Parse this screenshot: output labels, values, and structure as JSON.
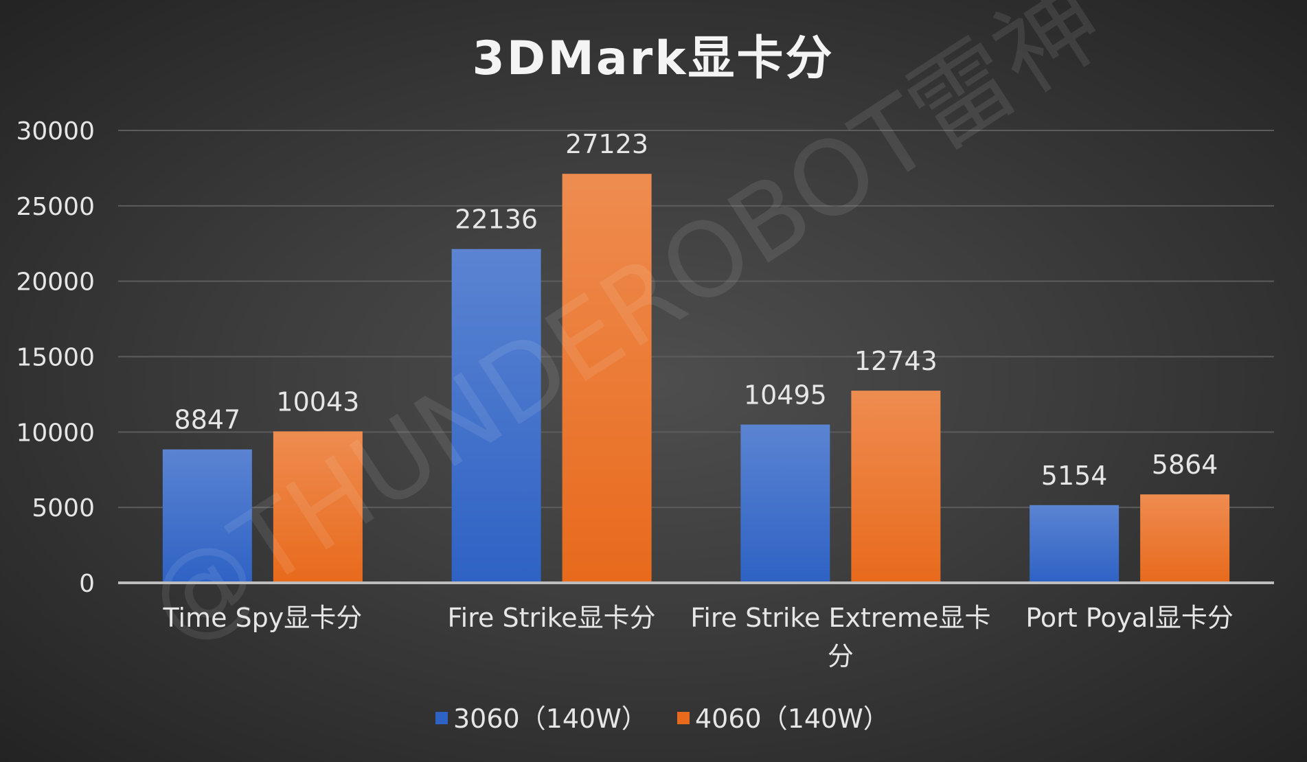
{
  "watermark": "@THUNDEROBOT雷神",
  "colors": {
    "series_1_top": "#5b84d2",
    "series_1_bottom": "#2e62c4",
    "series_2_top": "#ee8c50",
    "series_2_bottom": "#e86a1c"
  },
  "chart_data": {
    "type": "bar",
    "title": "3DMark显卡分",
    "xlabel": "",
    "ylabel": "",
    "categories": [
      "Time Spy显卡分",
      "Fire Strike显卡分",
      "Fire Strike Extreme显卡分",
      "Port Poyal显卡分"
    ],
    "category_lines": [
      [
        "Time Spy显卡分"
      ],
      [
        "Fire Strike显卡分"
      ],
      [
        "Fire Strike Extreme显卡",
        "分"
      ],
      [
        "Port Poyal显卡分"
      ]
    ],
    "series": [
      {
        "name": "3060（140W）",
        "values": [
          8847,
          22136,
          10495,
          5154
        ]
      },
      {
        "name": "4060（140W）",
        "values": [
          10043,
          27123,
          12743,
          5864
        ]
      }
    ],
    "ylim": [
      0,
      30000
    ],
    "yticks": [
      "0",
      "5000",
      "10000",
      "15000",
      "20000",
      "25000",
      "30000"
    ],
    "data_labels": [
      [
        "8847",
        "22136",
        "10495",
        "5154"
      ],
      [
        "10043",
        "27123",
        "12743",
        "5864"
      ]
    ],
    "grid": true,
    "legend_position": "bottom"
  }
}
